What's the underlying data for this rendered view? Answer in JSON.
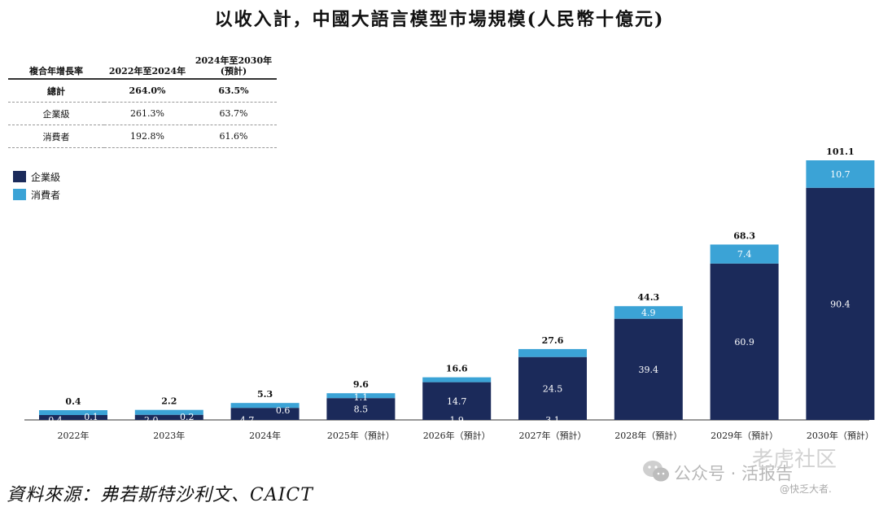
{
  "title": "以收入計，中國大語言模型市場規模(人民幣十億元)",
  "cagr_table": {
    "header": [
      "複合年增長率",
      "2022年至2024年",
      "2024年至2030年",
      "(預計)"
    ],
    "rows": [
      {
        "label": "總計",
        "v1": "264.0%",
        "v2": "63.5%"
      },
      {
        "label": "企業級",
        "v1": "261.3%",
        "v2": "63.7%"
      },
      {
        "label": "消費者",
        "v1": "192.8%",
        "v2": "61.6%"
      }
    ]
  },
  "legend": {
    "items": [
      {
        "label": "企業級",
        "color": "#1b2a5a"
      },
      {
        "label": "消費者",
        "color": "#3ba3d6"
      }
    ]
  },
  "chart_data": {
    "type": "bar",
    "stacked": true,
    "categories": [
      "2022年",
      "2023年",
      "2024年",
      "2025年（預計）",
      "2026年（預計）",
      "2027年（預計）",
      "2028年（預計）",
      "2029年（預計）",
      "2030年（預計）"
    ],
    "series": [
      {
        "name": "企業級",
        "color": "#1b2a5a",
        "values": [
          0.4,
          2.0,
          4.7,
          8.5,
          14.7,
          24.5,
          39.4,
          60.9,
          90.4
        ],
        "labels": [
          "0.4",
          "2.0",
          "4.7",
          "8.5",
          "14.7",
          "24.5",
          "39.4",
          "60.9",
          "90.4"
        ]
      },
      {
        "name": "消費者",
        "color": "#3ba3d6",
        "values": [
          0.1,
          0.2,
          0.6,
          1.1,
          1.9,
          3.1,
          4.9,
          7.4,
          10.7
        ],
        "labels": [
          "0.1",
          "0.2",
          "0.6",
          "1.1",
          "1.9",
          "3.1",
          "4.9",
          "7.4",
          "10.7"
        ]
      }
    ],
    "totals": [
      "0.4",
      "2.2",
      "5.3",
      "9.6",
      "16.6",
      "27.6",
      "44.3",
      "68.3",
      "101.1"
    ],
    "ylim": [
      0,
      101.1
    ]
  },
  "source": "資料來源：弗若斯特沙利文、CAICT",
  "watermark": {
    "account": "公众号 · 活报告",
    "brand": "老虎社区",
    "handle": "@快乏大者."
  }
}
